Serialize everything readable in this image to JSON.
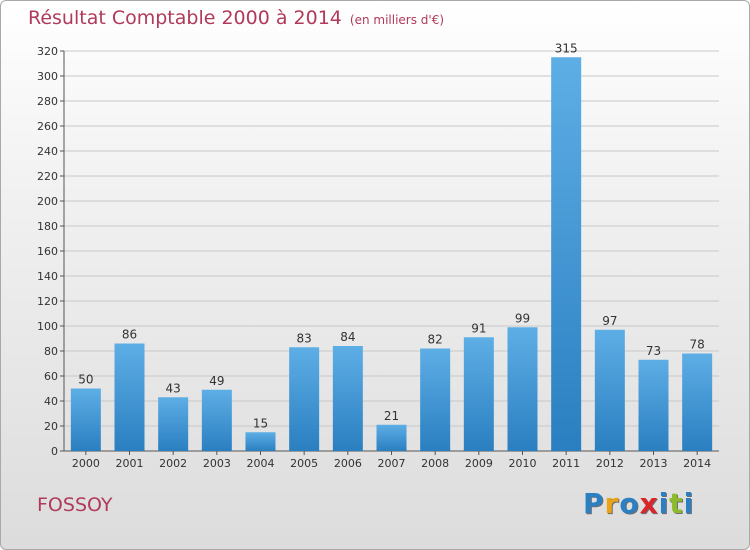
{
  "title": "Résultat Comptable 2000 à 2014",
  "subtitle": "(en milliers d'€)",
  "commune": "FOSSOY",
  "logo": "Proxiti",
  "colors": {
    "bar_top": "#5eaee6",
    "bar_bottom": "#2a7fc0",
    "title": "#b03a5a",
    "logo_letters": [
      "#2b7fc3",
      "#e8a317",
      "#2b7fc3",
      "#d9262b",
      "#2b7fc3",
      "#8cbb2c",
      "#2b7fc3"
    ]
  },
  "chart_data": {
    "type": "bar",
    "title": "Résultat Comptable 2000 à 2014",
    "subtitle": "(en milliers d'€)",
    "categories": [
      "2000",
      "2001",
      "2002",
      "2003",
      "2004",
      "2005",
      "2006",
      "2007",
      "2008",
      "2009",
      "2010",
      "2011",
      "2012",
      "2013",
      "2014"
    ],
    "values": [
      50,
      86,
      43,
      49,
      15,
      83,
      84,
      21,
      82,
      91,
      99,
      315,
      97,
      73,
      78
    ],
    "ylim": [
      0,
      320
    ],
    "yticks": [
      0,
      20,
      40,
      60,
      80,
      100,
      120,
      140,
      160,
      180,
      200,
      220,
      240,
      260,
      280,
      300,
      320
    ],
    "grid": true,
    "data_labels": true
  }
}
